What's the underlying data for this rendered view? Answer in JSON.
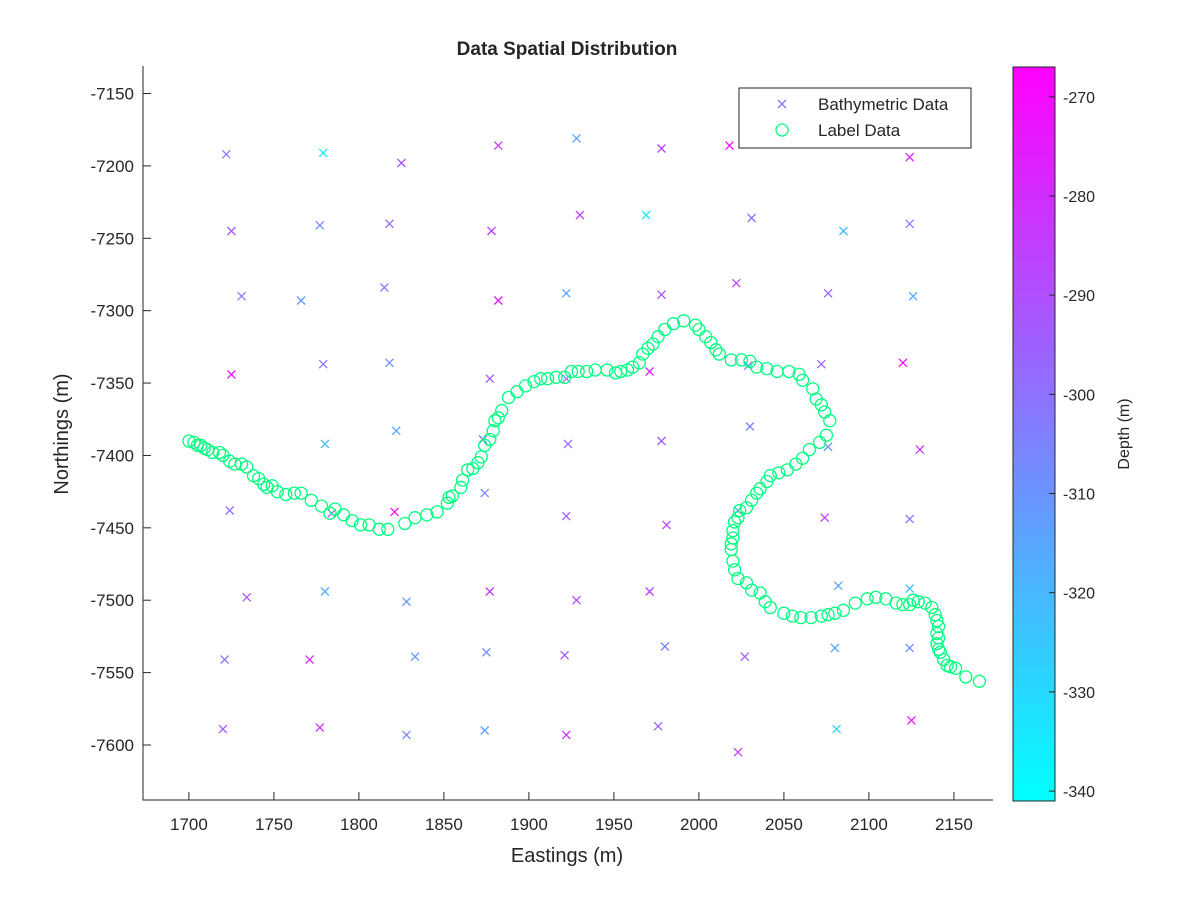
{
  "chart_data": {
    "type": "scatter",
    "title": "Data Spatial Distribution",
    "xlabel": "Eastings (m)",
    "ylabel": "Northings (m)",
    "xlim": [
      1673,
      2173
    ],
    "ylim": [
      -7638,
      -7131
    ],
    "xticks": [
      1700,
      1750,
      1800,
      1850,
      1900,
      1950,
      2000,
      2050,
      2100,
      2150
    ],
    "yticks": [
      -7150,
      -7200,
      -7250,
      -7300,
      -7350,
      -7400,
      -7450,
      -7500,
      -7550,
      -7600
    ],
    "grid": false,
    "legend_position": "top-right",
    "colorbar": {
      "label": "Depth (m)",
      "colormap": "cool",
      "clim": [
        -341,
        -267
      ],
      "ticks": [
        -270,
        -280,
        -290,
        -300,
        -310,
        -320,
        -330,
        -340
      ],
      "low_color": "#00ffff",
      "high_color": "#ff00ff"
    },
    "series": [
      {
        "name": "Bathymetric Data",
        "marker": "x",
        "points": [
          [
            1722,
            -7192,
            -303
          ],
          [
            1779,
            -7191,
            -336
          ],
          [
            1825,
            -7198,
            -292
          ],
          [
            1882,
            -7186,
            -283
          ],
          [
            1928,
            -7181,
            -315
          ],
          [
            1978,
            -7188,
            -286
          ],
          [
            2018,
            -7186,
            -270
          ],
          [
            2124,
            -7194,
            -276
          ],
          [
            1725,
            -7245,
            -294
          ],
          [
            1777,
            -7241,
            -307
          ],
          [
            1818,
            -7240,
            -297
          ],
          [
            1878,
            -7245,
            -287
          ],
          [
            1930,
            -7234,
            -285
          ],
          [
            1969,
            -7234,
            -335
          ],
          [
            2031,
            -7236,
            -301
          ],
          [
            2085,
            -7245,
            -320
          ],
          [
            2124,
            -7240,
            -305
          ],
          [
            1731,
            -7290,
            -306
          ],
          [
            1766,
            -7293,
            -312
          ],
          [
            1815,
            -7284,
            -305
          ],
          [
            1882,
            -7293,
            -274
          ],
          [
            1922,
            -7288,
            -315
          ],
          [
            1978,
            -7289,
            -292
          ],
          [
            2022,
            -7281,
            -286
          ],
          [
            2076,
            -7288,
            -296
          ],
          [
            2126,
            -7290,
            -316
          ],
          [
            1725,
            -7344,
            -273
          ],
          [
            1779,
            -7337,
            -302
          ],
          [
            1818,
            -7336,
            -310
          ],
          [
            1877,
            -7347,
            -292
          ],
          [
            1922,
            -7347,
            -303
          ],
          [
            1971,
            -7342,
            -278
          ],
          [
            2029,
            -7338,
            -306
          ],
          [
            2072,
            -7337,
            -296
          ],
          [
            2120,
            -7336,
            -270
          ],
          [
            1780,
            -7392,
            -320
          ],
          [
            1822,
            -7383,
            -315
          ],
          [
            1873,
            -7389,
            -299
          ],
          [
            1923,
            -7392,
            -298
          ],
          [
            1978,
            -7390,
            -294
          ],
          [
            2030,
            -7380,
            -305
          ],
          [
            2076,
            -7394,
            -311
          ],
          [
            2130,
            -7396,
            -283
          ],
          [
            1724,
            -7438,
            -298
          ],
          [
            1784,
            -7440,
            -296
          ],
          [
            1821,
            -7439,
            -272
          ],
          [
            1874,
            -7426,
            -307
          ],
          [
            1922,
            -7442,
            -295
          ],
          [
            1981,
            -7448,
            -287
          ],
          [
            2023,
            -7438,
            -312
          ],
          [
            2074,
            -7443,
            -285
          ],
          [
            2124,
            -7444,
            -300
          ],
          [
            1734,
            -7498,
            -292
          ],
          [
            1780,
            -7494,
            -318
          ],
          [
            1828,
            -7501,
            -311
          ],
          [
            1877,
            -7494,
            -284
          ],
          [
            1928,
            -7500,
            -288
          ],
          [
            1971,
            -7494,
            -287
          ],
          [
            2082,
            -7490,
            -314
          ],
          [
            2124,
            -7492,
            -322
          ],
          [
            1721,
            -7541,
            -299
          ],
          [
            1771,
            -7541,
            -279
          ],
          [
            1833,
            -7539,
            -310
          ],
          [
            1875,
            -7536,
            -307
          ],
          [
            1921,
            -7538,
            -292
          ],
          [
            1980,
            -7532,
            -305
          ],
          [
            2027,
            -7539,
            -293
          ],
          [
            2080,
            -7533,
            -317
          ],
          [
            2124,
            -7533,
            -309
          ],
          [
            1720,
            -7589,
            -293
          ],
          [
            1777,
            -7588,
            -280
          ],
          [
            1828,
            -7593,
            -306
          ],
          [
            1874,
            -7590,
            -314
          ],
          [
            1922,
            -7593,
            -282
          ],
          [
            1976,
            -7587,
            -296
          ],
          [
            2023,
            -7605,
            -286
          ],
          [
            2081,
            -7589,
            -328
          ],
          [
            2125,
            -7583,
            -273
          ]
        ]
      },
      {
        "name": "Label Data",
        "marker": "o",
        "color": "#00ff80",
        "points": [
          [
            1700,
            -7390
          ],
          [
            1703,
            -7391
          ],
          [
            1705,
            -7393
          ],
          [
            1707,
            -7393
          ],
          [
            1709,
            -7395
          ],
          [
            1711,
            -7396
          ],
          [
            1714,
            -7398
          ],
          [
            1718,
            -7398
          ],
          [
            1720,
            -7400
          ],
          [
            1724,
            -7404
          ],
          [
            1727,
            -7406
          ],
          [
            1731,
            -7406
          ],
          [
            1734,
            -7408
          ],
          [
            1738,
            -7414
          ],
          [
            1741,
            -7416
          ],
          [
            1744,
            -7420
          ],
          [
            1746,
            -7422
          ],
          [
            1749,
            -7421
          ],
          [
            1752,
            -7425
          ],
          [
            1757,
            -7427
          ],
          [
            1762,
            -7426
          ],
          [
            1766,
            -7426
          ],
          [
            1772,
            -7431
          ],
          [
            1778,
            -7435
          ],
          [
            1783,
            -7440
          ],
          [
            1786,
            -7437
          ],
          [
            1791,
            -7441
          ],
          [
            1796,
            -7445
          ],
          [
            1801,
            -7448
          ],
          [
            1806,
            -7448
          ],
          [
            1812,
            -7451
          ],
          [
            1817,
            -7451
          ],
          [
            1827,
            -7447
          ],
          [
            1833,
            -7443
          ],
          [
            1840,
            -7441
          ],
          [
            1846,
            -7439
          ],
          [
            1852,
            -7433
          ],
          [
            1853,
            -7429
          ],
          [
            1855,
            -7428
          ],
          [
            1860,
            -7422
          ],
          [
            1861,
            -7417
          ],
          [
            1864,
            -7410
          ],
          [
            1867,
            -7409
          ],
          [
            1870,
            -7405
          ],
          [
            1872,
            -7401
          ],
          [
            1874,
            -7393
          ],
          [
            1877,
            -7389
          ],
          [
            1879,
            -7383
          ],
          [
            1880,
            -7376
          ],
          [
            1882,
            -7374
          ],
          [
            1884,
            -7369
          ],
          [
            1888,
            -7360
          ],
          [
            1893,
            -7356
          ],
          [
            1898,
            -7352
          ],
          [
            1903,
            -7349
          ],
          [
            1907,
            -7347
          ],
          [
            1911,
            -7347
          ],
          [
            1916,
            -7346
          ],
          [
            1921,
            -7346
          ],
          [
            1925,
            -7342
          ],
          [
            1929,
            -7342
          ],
          [
            1934,
            -7342
          ],
          [
            1939,
            -7341
          ],
          [
            1946,
            -7341
          ],
          [
            1951,
            -7343
          ],
          [
            1954,
            -7342
          ],
          [
            1958,
            -7341
          ],
          [
            1961,
            -7339
          ],
          [
            1965,
            -7336
          ],
          [
            1967,
            -7330
          ],
          [
            1970,
            -7326
          ],
          [
            1973,
            -7323
          ],
          [
            1976,
            -7318
          ],
          [
            1980,
            -7313
          ],
          [
            1985,
            -7309
          ],
          [
            1991,
            -7307
          ],
          [
            1998,
            -7310
          ],
          [
            2000,
            -7313
          ],
          [
            2004,
            -7318
          ],
          [
            2007,
            -7322
          ],
          [
            2010,
            -7327
          ],
          [
            2012,
            -7330
          ],
          [
            2019,
            -7334
          ],
          [
            2025,
            -7334
          ],
          [
            2030,
            -7335
          ],
          [
            2034,
            -7339
          ],
          [
            2040,
            -7340
          ],
          [
            2046,
            -7342
          ],
          [
            2053,
            -7342
          ],
          [
            2059,
            -7344
          ],
          [
            2061,
            -7348
          ],
          [
            2067,
            -7354
          ],
          [
            2069,
            -7361
          ],
          [
            2072,
            -7365
          ],
          [
            2074,
            -7370
          ],
          [
            2077,
            -7376
          ],
          [
            2075,
            -7386
          ],
          [
            2071,
            -7391
          ],
          [
            2065,
            -7396
          ],
          [
            2061,
            -7402
          ],
          [
            2057,
            -7406
          ],
          [
            2052,
            -7410
          ],
          [
            2047,
            -7412
          ],
          [
            2042,
            -7414
          ],
          [
            2040,
            -7418
          ],
          [
            2036,
            -7423
          ],
          [
            2034,
            -7426
          ],
          [
            2031,
            -7431
          ],
          [
            2028,
            -7436
          ],
          [
            2024,
            -7438
          ],
          [
            2023,
            -7443
          ],
          [
            2021,
            -7446
          ],
          [
            2020,
            -7452
          ],
          [
            2020,
            -7457
          ],
          [
            2019,
            -7461
          ],
          [
            2019,
            -7465
          ],
          [
            2020,
            -7473
          ],
          [
            2021,
            -7479
          ],
          [
            2023,
            -7485
          ],
          [
            2028,
            -7488
          ],
          [
            2031,
            -7493
          ],
          [
            2036,
            -7495
          ],
          [
            2039,
            -7501
          ],
          [
            2042,
            -7505
          ],
          [
            2050,
            -7509
          ],
          [
            2055,
            -7511
          ],
          [
            2060,
            -7512
          ],
          [
            2066,
            -7512
          ],
          [
            2072,
            -7511
          ],
          [
            2076,
            -7510
          ],
          [
            2080,
            -7509
          ],
          [
            2085,
            -7507
          ],
          [
            2092,
            -7502
          ],
          [
            2099,
            -7499
          ],
          [
            2104,
            -7498
          ],
          [
            2110,
            -7499
          ],
          [
            2116,
            -7502
          ],
          [
            2120,
            -7503
          ],
          [
            2124,
            -7503
          ],
          [
            2126,
            -7500
          ],
          [
            2129,
            -7501
          ],
          [
            2133,
            -7502
          ],
          [
            2137,
            -7505
          ],
          [
            2139,
            -7510
          ],
          [
            2140,
            -7514
          ],
          [
            2141,
            -7518
          ],
          [
            2140,
            -7523
          ],
          [
            2141,
            -7526
          ],
          [
            2140,
            -7530
          ],
          [
            2141,
            -7534
          ],
          [
            2142,
            -7536
          ],
          [
            2144,
            -7541
          ],
          [
            2146,
            -7545
          ],
          [
            2148,
            -7546
          ],
          [
            2151,
            -7547
          ],
          [
            2157,
            -7553
          ],
          [
            2165,
            -7556
          ]
        ]
      }
    ]
  }
}
